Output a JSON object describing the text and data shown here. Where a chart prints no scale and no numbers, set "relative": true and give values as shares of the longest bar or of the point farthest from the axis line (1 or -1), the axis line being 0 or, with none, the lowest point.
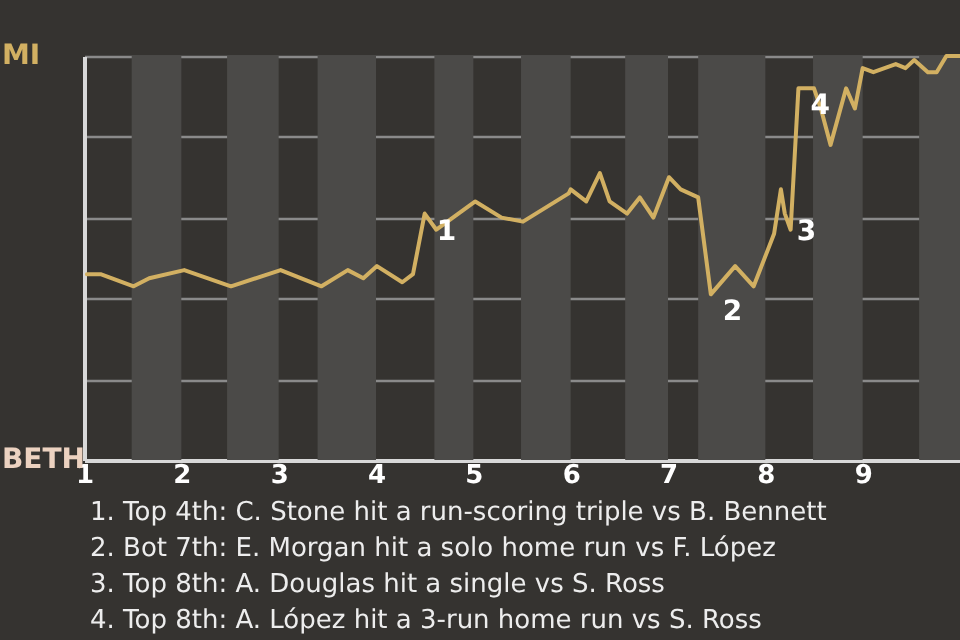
{
  "chart_data": {
    "type": "line",
    "relative": true,
    "x": [
      1.03,
      1.17,
      1.51,
      1.67,
      2.03,
      2.51,
      3.02,
      3.44,
      3.71,
      3.87,
      4.01,
      4.27,
      4.38,
      4.5,
      4.62,
      5.02,
      5.29,
      5.51,
      5.98,
      6.0,
      6.16,
      6.3,
      6.4,
      6.58,
      6.71,
      6.85,
      7.01,
      7.13,
      7.31,
      7.44,
      7.69,
      7.88,
      8.09,
      8.16,
      8.2,
      8.26,
      8.34,
      8.5,
      8.57,
      8.67,
      8.83,
      8.92,
      9.0,
      9.11,
      9.34,
      9.44,
      9.53,
      9.67,
      9.76,
      9.86,
      10
    ],
    "series": [
      {
        "color": "#d2b062",
        "values": [
          0.46,
          0.46,
          0.43,
          0.45,
          0.47,
          0.43,
          0.47,
          0.43,
          0.47,
          0.45,
          0.48,
          0.44,
          0.46,
          0.61,
          0.57,
          0.64,
          0.6,
          0.59,
          0.66,
          0.67,
          0.64,
          0.71,
          0.64,
          0.61,
          0.65,
          0.6,
          0.7,
          0.67,
          0.65,
          0.41,
          0.48,
          0.43,
          0.56,
          0.67,
          0.61,
          0.57,
          0.92,
          0.92,
          0.87,
          0.78,
          0.92,
          0.87,
          0.97,
          0.96,
          0.98,
          0.97,
          0.99,
          0.96,
          0.96,
          1,
          1
        ]
      }
    ],
    "xlim": [
      1,
      10
    ],
    "xticks": [
      1,
      2,
      3,
      4,
      5,
      6,
      7,
      8,
      9
    ],
    "grid": "y",
    "marker": "none",
    "bands": [
      {
        "axis": "x",
        "from": 1.49,
        "to": 2,
        "color": "#4b4a48"
      },
      {
        "axis": "x",
        "from": 2.47,
        "to": 3,
        "color": "#4b4a48"
      },
      {
        "axis": "x",
        "from": 3.4,
        "to": 4,
        "color": "#4b4a48"
      },
      {
        "axis": "x",
        "from": 4.6,
        "to": 5,
        "color": "#4b4a48"
      },
      {
        "axis": "x",
        "from": 5.49,
        "to": 6,
        "color": "#4b4a48"
      },
      {
        "axis": "x",
        "from": 6.56,
        "to": 7,
        "color": "#4b4a48"
      },
      {
        "axis": "x",
        "from": 7.31,
        "to": 8,
        "color": "#4b4a48"
      },
      {
        "axis": "x",
        "from": 8.49,
        "to": 9,
        "color": "#4b4a48"
      },
      {
        "axis": "x",
        "from": 9.58,
        "to": 10,
        "color": "#4b4a48"
      }
    ],
    "annotations": [
      "MI",
      "BETH",
      {
        "text": "1",
        "x": 4.5,
        "y": 0.61
      },
      {
        "text": "2",
        "x": 7.44,
        "y": 0.41
      },
      {
        "text": "3",
        "x": 8.2,
        "y": 0.61
      },
      {
        "text": "4",
        "x": 8.34,
        "y": 0.92
      },
      "1. Top 4th: C. Stone hit a run-scoring triple vs B. Bennett",
      "2. Bot 7th: E. Morgan hit a solo home run vs F. López",
      "3. Top 8th: A. Douglas hit a single vs S. Ross",
      "4. Top 8th: A. López hit a 3-run home run vs S. Ross"
    ]
  }
}
